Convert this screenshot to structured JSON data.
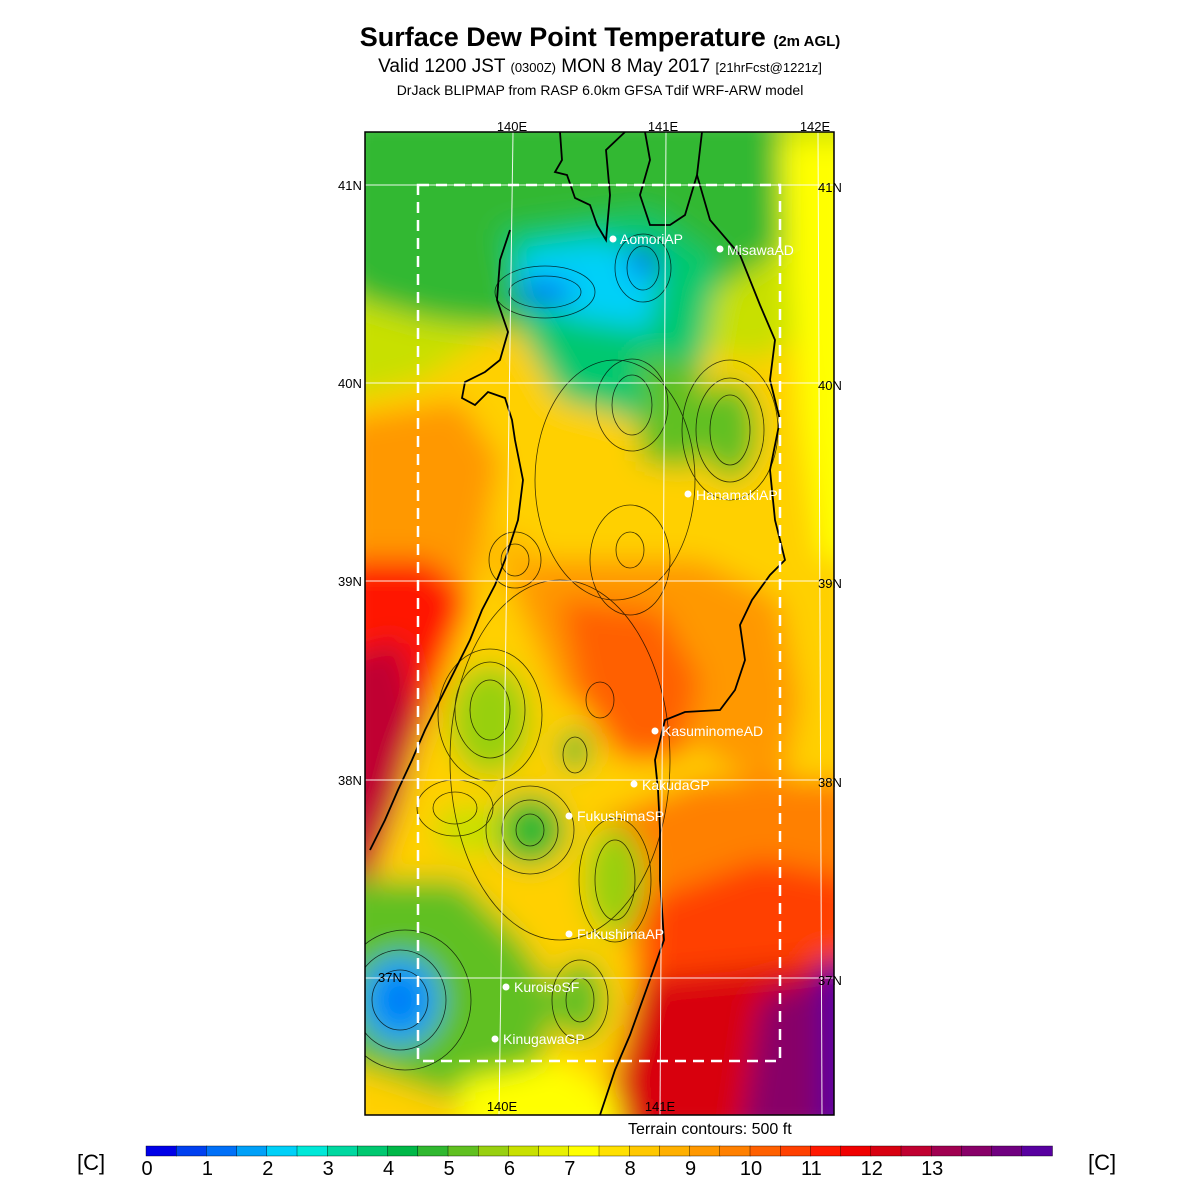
{
  "title": {
    "main": "Surface Dew Point Temperature",
    "main_suffix": "(2m AGL)",
    "valid_prefix": "Valid 1200 JST",
    "valid_utc": "(0300Z)",
    "valid_date": "MON 8 May 2017",
    "forecast": "[21hrFcst@1221z]",
    "model": "DrJack BLIPMAP from RASP 6.0km GFSA Tdif WRF-ARW model"
  },
  "axes": {
    "lon_labels": [
      "140E",
      "141E",
      "142E"
    ],
    "lat_labels": [
      "41N",
      "40N",
      "39N",
      "38N",
      "37N"
    ]
  },
  "stations": [
    "AomoriAP",
    "MisawaAD",
    "HanamakiAP",
    "KasuminomeAD",
    "KakudaGP",
    "FukushimaSP",
    "FukushimaAP",
    "KuroisoSF",
    "KinugawaGP"
  ],
  "terrain_note": "Terrain contours: 500 ft",
  "colorbar": {
    "unit": "[C]",
    "ticks": [
      "0",
      "1",
      "2",
      "3",
      "4",
      "5",
      "6",
      "7",
      "8",
      "9",
      "10",
      "11",
      "12",
      "13"
    ],
    "colors": [
      "#0000e8",
      "#0040f0",
      "#0070f8",
      "#00a0f8",
      "#00d0f8",
      "#00e8d8",
      "#00d8a0",
      "#00c870",
      "#00b848",
      "#30b830",
      "#60c020",
      "#98d010",
      "#c8e000",
      "#e8f000",
      "#ffff00",
      "#ffe000",
      "#ffc800",
      "#ffb000",
      "#ff9800",
      "#ff8000",
      "#ff6000",
      "#ff4000",
      "#ff1800",
      "#f00000",
      "#d80010",
      "#c00030",
      "#a00050",
      "#880068",
      "#700080",
      "#5800a0"
    ]
  }
}
